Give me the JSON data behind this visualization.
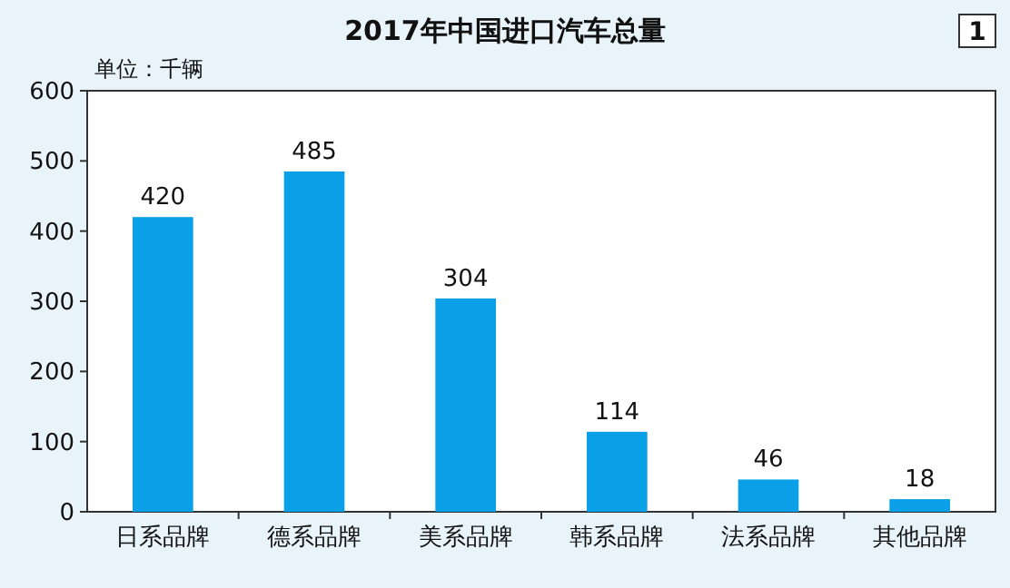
{
  "chart_data": {
    "type": "bar",
    "title": "2017年中国进口汽车总量",
    "ylabel": "单位：千辆",
    "annotations": [
      "1"
    ],
    "categories": [
      "日系品牌",
      "德系品牌",
      "美系品牌",
      "韩系品牌",
      "法系品牌",
      "其他品牌"
    ],
    "values": [
      420,
      485,
      304,
      114,
      46,
      18
    ],
    "color": "#0aa0e8",
    "ylim": [
      0,
      600
    ],
    "yticks": [
      0,
      100,
      200,
      300,
      400,
      500,
      600
    ],
    "data_labels": true,
    "grid": false
  }
}
